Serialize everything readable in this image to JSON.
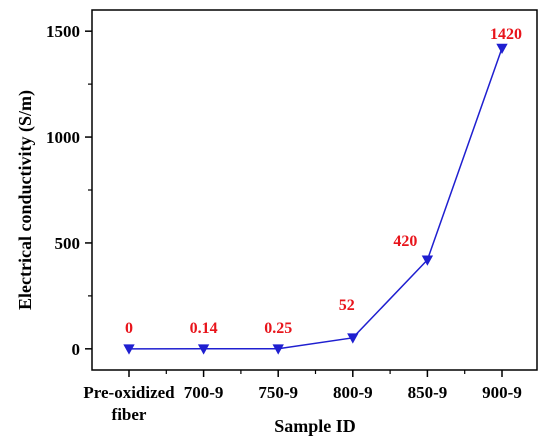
{
  "chart_data": {
    "type": "line",
    "categories": [
      "Pre-oxidized fiber",
      "700-9",
      "750-9",
      "800-9",
      "850-9",
      "900-9"
    ],
    "category_lines": [
      [
        "Pre-oxidized",
        "fiber"
      ],
      [
        "700-9"
      ],
      [
        "750-9"
      ],
      [
        "800-9"
      ],
      [
        "850-9"
      ],
      [
        "900-9"
      ]
    ],
    "series": [
      {
        "values": [
          0,
          0.14,
          0.25,
          52,
          420,
          1420
        ]
      }
    ],
    "data_labels": [
      "0",
      "0.14",
      "0.25",
      "52",
      "420",
      "1420"
    ],
    "xlabel": "Sample ID",
    "ylabel": "Electrical conductivity (S/m)",
    "ylim": [
      -100,
      1600
    ],
    "yticks": [
      0,
      500,
      1000,
      1500
    ],
    "ytick_labels": [
      "0",
      "500",
      "1000",
      "1500"
    ],
    "grid": false,
    "colors": {
      "line": "#1f1fd0",
      "marker": "#1f1fd0",
      "labels": "#e8141b",
      "axis": "#000000"
    }
  }
}
